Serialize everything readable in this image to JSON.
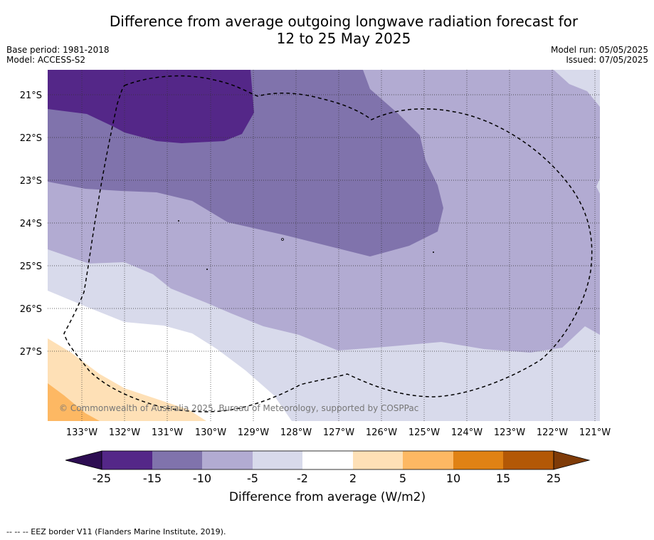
{
  "title_line1": "Difference from average outgoing longwave radiation forecast for",
  "title_line2": "12 to 25 May 2025",
  "meta": {
    "base_period": "Base period: 1981-2018",
    "model": "Model: ACCESS-S2",
    "model_run": "Model run: 05/05/2025",
    "issued": "Issued: 07/05/2025"
  },
  "map": {
    "lat_labels": [
      "21°S",
      "22°S",
      "23°S",
      "24°S",
      "25°S",
      "26°S",
      "27°S"
    ],
    "lon_labels": [
      "133°W",
      "132°W",
      "131°W",
      "130°W",
      "129°W",
      "128°W",
      "127°W",
      "126°W",
      "125°W",
      "124°W",
      "123°W",
      "122°W",
      "121°W"
    ],
    "copyright": "© Commonwealth of Australia 2025, Bureau of Meteorology, supported by COSPPac",
    "eez_style": "dashed black",
    "gridlines": "dotted"
  },
  "colorbar": {
    "label": "Difference from average (W/m2)",
    "ticks": [
      "-25",
      "-15",
      "-10",
      "-5",
      "-2",
      "2",
      "5",
      "10",
      "15",
      "25"
    ],
    "colors": [
      "#2d0d52",
      "#542788",
      "#8073ac",
      "#b2abd2",
      "#d8daeb",
      "#ffffff",
      "#fee0b6",
      "#fdb863",
      "#e08214",
      "#b35806",
      "#7f3b08"
    ]
  },
  "footnote": "-- -- -- EEZ border V11 (Flanders Marine Institute, 2019)."
}
